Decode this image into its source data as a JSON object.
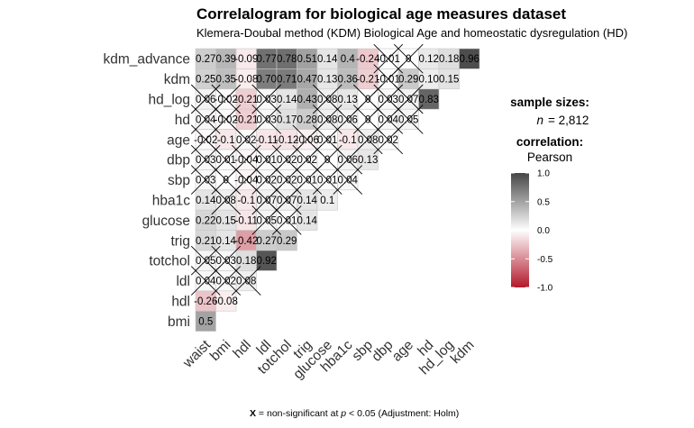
{
  "chart_data": {
    "type": "heatmap",
    "title": "Correlalogram for biological age measures dataset",
    "subtitle": "Klemera-Doubal method (KDM) Biological Age and homeostatic dysregulation (HD)",
    "row_labels": [
      "kdm_advance",
      "kdm",
      "hd_log",
      "hd",
      "age",
      "dbp",
      "sbp",
      "hba1c",
      "glucose",
      "trig",
      "totchol",
      "ldl",
      "hdl",
      "bmi"
    ],
    "col_labels": [
      "waist",
      "bmi",
      "hdl",
      "ldl",
      "totchol",
      "trig",
      "glucose",
      "hba1c",
      "sbp",
      "dbp",
      "age",
      "hd",
      "hd_log",
      "kdm"
    ],
    "cells": [
      [
        {
          "label": "0.27",
          "value": 0.27,
          "ns": false
        },
        {
          "label": "0.39",
          "value": 0.39,
          "ns": false
        },
        {
          "label": "-0.09",
          "value": -0.09,
          "ns": false
        },
        {
          "label": "0.77",
          "value": 0.77,
          "ns": false
        },
        {
          "label": "0.78",
          "value": 0.78,
          "ns": false
        },
        {
          "label": "0.51",
          "value": 0.51,
          "ns": false
        },
        {
          "label": "0.14",
          "value": 0.14,
          "ns": false
        },
        {
          "label": "0.4",
          "value": 0.4,
          "ns": false
        },
        {
          "label": "-0.24",
          "value": -0.24,
          "ns": false
        },
        {
          "label": "-0.01",
          "value": -0.01,
          "ns": true
        },
        {
          "label": "0",
          "value": 0,
          "ns": true
        },
        {
          "label": "0.12",
          "value": 0.12,
          "ns": false
        },
        {
          "label": "0.18",
          "value": 0.18,
          "ns": false
        },
        {
          "label": "0.96",
          "value": 0.96,
          "ns": false
        }
      ],
      [
        {
          "label": "0.25",
          "value": 0.25,
          "ns": false
        },
        {
          "label": "0.35",
          "value": 0.35,
          "ns": false
        },
        {
          "label": "-0.08",
          "value": -0.08,
          "ns": false
        },
        {
          "label": "0.70",
          "value": 0.7,
          "ns": false
        },
        {
          "label": "0.71",
          "value": 0.71,
          "ns": false
        },
        {
          "label": "0.47",
          "value": 0.47,
          "ns": false
        },
        {
          "label": "0.13",
          "value": 0.13,
          "ns": false
        },
        {
          "label": "0.36",
          "value": 0.36,
          "ns": false
        },
        {
          "label": "-0.21",
          "value": -0.21,
          "ns": false
        },
        {
          "label": "-0.01",
          "value": -0.01,
          "ns": true
        },
        {
          "label": "0.29",
          "value": 0.29,
          "ns": false
        },
        {
          "label": "0.10",
          "value": 0.1,
          "ns": false
        },
        {
          "label": "0.15",
          "value": 0.15,
          "ns": false
        }
      ],
      [
        {
          "label": "0.06",
          "value": 0.06,
          "ns": true
        },
        {
          "label": "-0.02",
          "value": -0.02,
          "ns": true
        },
        {
          "label": "-0.21",
          "value": -0.21,
          "ns": false
        },
        {
          "label": "0.03",
          "value": 0.03,
          "ns": true
        },
        {
          "label": "0.14",
          "value": 0.14,
          "ns": false
        },
        {
          "label": "0.43",
          "value": 0.43,
          "ns": false
        },
        {
          "label": "0.08",
          "value": 0.08,
          "ns": true
        },
        {
          "label": "0.13",
          "value": 0.13,
          "ns": false
        },
        {
          "label": "0",
          "value": 0,
          "ns": true
        },
        {
          "label": "0.03",
          "value": 0.03,
          "ns": true
        },
        {
          "label": "0.07",
          "value": 0.07,
          "ns": true
        },
        {
          "label": "0.83",
          "value": 0.83,
          "ns": false
        }
      ],
      [
        {
          "label": "0.04",
          "value": 0.04,
          "ns": true
        },
        {
          "label": "-0.02",
          "value": -0.02,
          "ns": true
        },
        {
          "label": "-0.21",
          "value": -0.21,
          "ns": false
        },
        {
          "label": "0.03",
          "value": 0.03,
          "ns": true
        },
        {
          "label": "0.17",
          "value": 0.17,
          "ns": false
        },
        {
          "label": "0.28",
          "value": 0.28,
          "ns": false
        },
        {
          "label": "0.08",
          "value": 0.08,
          "ns": true
        },
        {
          "label": "0.06",
          "value": 0.06,
          "ns": true
        },
        {
          "label": "0",
          "value": 0,
          "ns": true
        },
        {
          "label": "0.04",
          "value": 0.04,
          "ns": true
        },
        {
          "label": "0.05",
          "value": 0.05,
          "ns": true
        }
      ],
      [
        {
          "label": "-0.02",
          "value": -0.02,
          "ns": true
        },
        {
          "label": "-0.1",
          "value": -0.1,
          "ns": false
        },
        {
          "label": "0.02",
          "value": 0.02,
          "ns": true
        },
        {
          "label": "-0.11",
          "value": -0.11,
          "ns": false
        },
        {
          "label": "-0.12",
          "value": -0.12,
          "ns": false
        },
        {
          "label": "-0.06",
          "value": -0.06,
          "ns": true
        },
        {
          "label": "0.01",
          "value": 0.01,
          "ns": true
        },
        {
          "label": "-0.1",
          "value": -0.1,
          "ns": false
        },
        {
          "label": "0.08",
          "value": 0.08,
          "ns": true
        },
        {
          "label": "0.02",
          "value": 0.02,
          "ns": true
        }
      ],
      [
        {
          "label": "0.03",
          "value": 0.03,
          "ns": true
        },
        {
          "label": "0.01",
          "value": 0.01,
          "ns": true
        },
        {
          "label": "-0.04",
          "value": -0.04,
          "ns": true
        },
        {
          "label": "0.01",
          "value": 0.01,
          "ns": true
        },
        {
          "label": "0.02",
          "value": 0.02,
          "ns": true
        },
        {
          "label": "0.02",
          "value": 0.02,
          "ns": true
        },
        {
          "label": "0",
          "value": 0,
          "ns": true
        },
        {
          "label": "0.06",
          "value": 0.06,
          "ns": true
        },
        {
          "label": "0.13",
          "value": 0.13,
          "ns": false
        }
      ],
      [
        {
          "label": "0.03",
          "value": 0.03,
          "ns": true
        },
        {
          "label": "0",
          "value": 0,
          "ns": true
        },
        {
          "label": "-0.04",
          "value": -0.04,
          "ns": true
        },
        {
          "label": "0.02",
          "value": 0.02,
          "ns": true
        },
        {
          "label": "0.02",
          "value": 0.02,
          "ns": true
        },
        {
          "label": "0.01",
          "value": 0.01,
          "ns": true
        },
        {
          "label": "0.01",
          "value": 0.01,
          "ns": true
        },
        {
          "label": "0.04",
          "value": 0.04,
          "ns": true
        }
      ],
      [
        {
          "label": "0.14",
          "value": 0.14,
          "ns": false
        },
        {
          "label": "0.08",
          "value": 0.08,
          "ns": true
        },
        {
          "label": "-0.1",
          "value": -0.1,
          "ns": false
        },
        {
          "label": "0.07",
          "value": 0.07,
          "ns": true
        },
        {
          "label": "0.07",
          "value": 0.07,
          "ns": true
        },
        {
          "label": "0.14",
          "value": 0.14,
          "ns": false
        },
        {
          "label": "0.1",
          "value": 0.1,
          "ns": false
        }
      ],
      [
        {
          "label": "0.22",
          "value": 0.22,
          "ns": false
        },
        {
          "label": "0.15",
          "value": 0.15,
          "ns": false
        },
        {
          "label": "-0.11",
          "value": -0.11,
          "ns": false
        },
        {
          "label": "0.05",
          "value": 0.05,
          "ns": true
        },
        {
          "label": "0.01",
          "value": 0.01,
          "ns": true
        },
        {
          "label": "0.14",
          "value": 0.14,
          "ns": false
        }
      ],
      [
        {
          "label": "0.21",
          "value": 0.21,
          "ns": false
        },
        {
          "label": "0.14",
          "value": 0.14,
          "ns": false
        },
        {
          "label": "-0.42",
          "value": -0.42,
          "ns": false
        },
        {
          "label": "0.27",
          "value": 0.27,
          "ns": false
        },
        {
          "label": "0.29",
          "value": 0.29,
          "ns": false
        }
      ],
      [
        {
          "label": "0.05",
          "value": 0.05,
          "ns": true
        },
        {
          "label": "0.03",
          "value": 0.03,
          "ns": true
        },
        {
          "label": "0.18",
          "value": 0.18,
          "ns": false
        },
        {
          "label": "0.92",
          "value": 0.92,
          "ns": false
        }
      ],
      [
        {
          "label": "0.04",
          "value": 0.04,
          "ns": true
        },
        {
          "label": "0.02",
          "value": 0.02,
          "ns": true
        },
        {
          "label": "0.08",
          "value": 0.08,
          "ns": true
        }
      ],
      [
        {
          "label": "-0.26",
          "value": -0.26,
          "ns": false
        },
        {
          "label": "-0.08",
          "value": -0.08,
          "ns": false
        }
      ],
      [
        {
          "label": "0.5",
          "value": 0.5,
          "ns": false
        }
      ]
    ],
    "legend": {
      "sample_title": "sample sizes:",
      "n_label": "n",
      "n_value": "= 2,812",
      "corr_title": "correlation:",
      "corr_method": "Pearson",
      "ticks": [
        "1.0",
        "0.5",
        "0.0",
        "-0.5",
        "-1.0"
      ],
      "tick_values": [
        1.0,
        0.5,
        0.0,
        -0.5,
        -1.0
      ],
      "colors": {
        "high": "#464646",
        "mid": "#ffffff",
        "low": "#b2182b"
      },
      "placement": "right"
    },
    "caption": {
      "x_mark": "X",
      "text_before_p": " = non-significant at ",
      "p": "p",
      "text_after_p": " < 0.05 (Adjustment: Holm)"
    }
  }
}
